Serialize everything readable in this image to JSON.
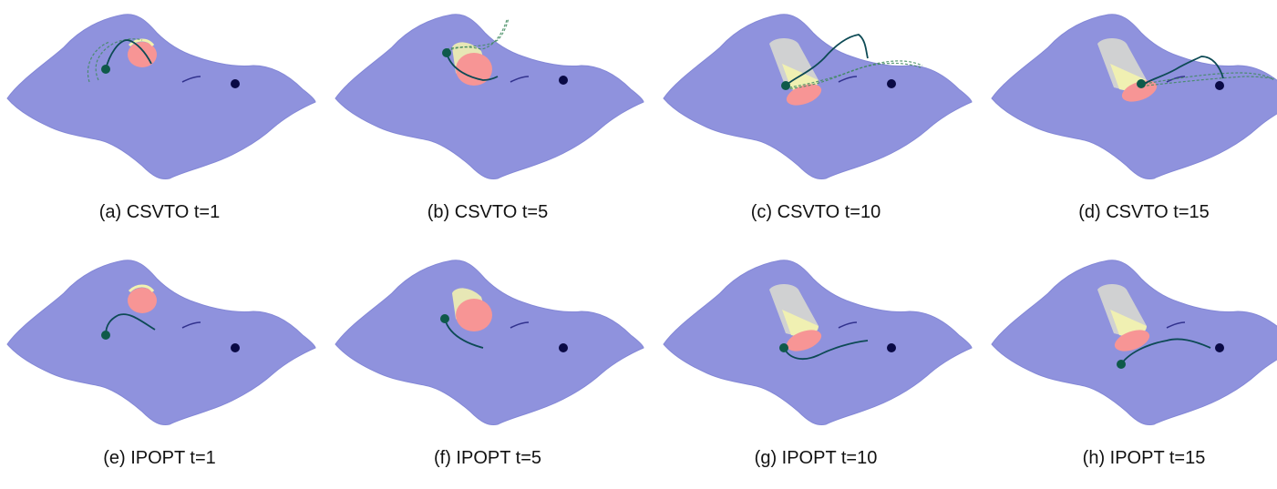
{
  "colors": {
    "surface": "#8f92dd",
    "surface_edge": "#8387d6",
    "obstacle_red": "#f79595",
    "obstacle_yellow": "#f1f1b0",
    "obstacle_gray": "#dcdcd0",
    "trajectory": "#0d4a55",
    "trajectory_alt": "#3f8a5e",
    "goal": "#0a0a45",
    "start": "#0f5a4a"
  },
  "panels": [
    {
      "caption": "(a) CSVTO t=1",
      "method": "CSVTO",
      "t": 1
    },
    {
      "caption": "(b) CSVTO t=5",
      "method": "CSVTO",
      "t": 5
    },
    {
      "caption": "(c) CSVTO t=10",
      "method": "CSVTO",
      "t": 10
    },
    {
      "caption": "(d) CSVTO t=15",
      "method": "CSVTO",
      "t": 15
    },
    {
      "caption": "(e) IPOPT t=1",
      "method": "IPOPT",
      "t": 1
    },
    {
      "caption": "(f) IPOPT t=5",
      "method": "IPOPT",
      "t": 5
    },
    {
      "caption": "(g) IPOPT t=10",
      "method": "IPOPT",
      "t": 10
    },
    {
      "caption": "(h) IPOPT t=15",
      "method": "IPOPT",
      "t": 15
    }
  ]
}
